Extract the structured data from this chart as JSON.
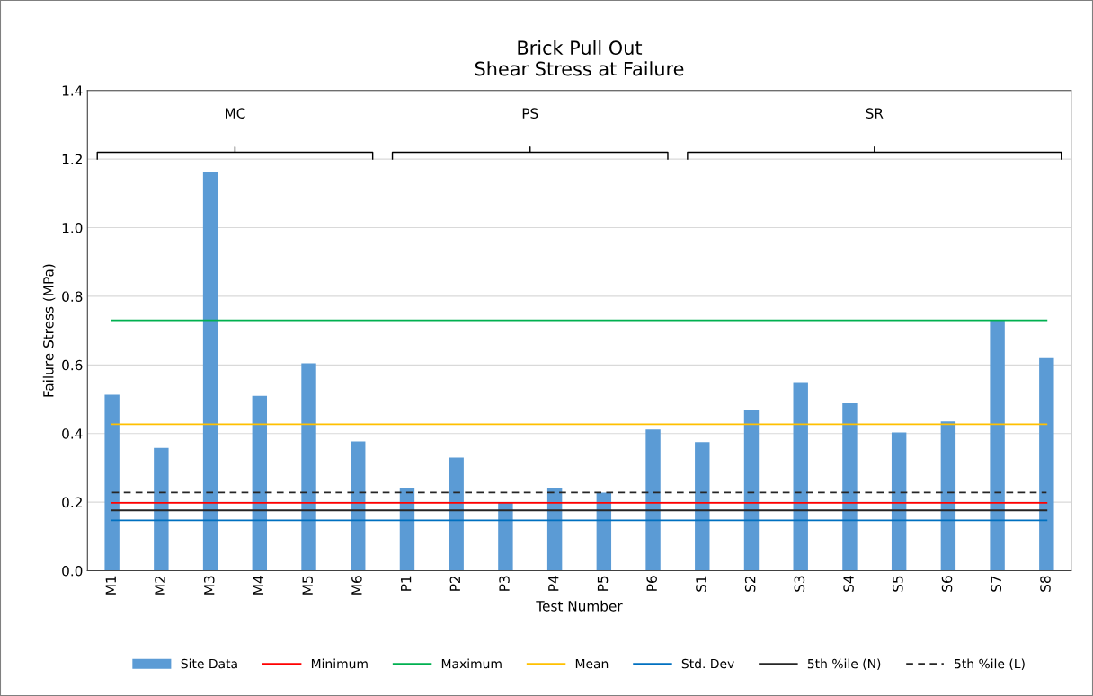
{
  "chart_data": {
    "type": "bar",
    "title": "Brick Pull Out\nShear Stress at Failure",
    "xlabel": "Test Number",
    "ylabel": "Failure Stress (MPa)",
    "categories": [
      "M1",
      "M2",
      "M3",
      "M4",
      "M5",
      "M6",
      "P1",
      "P2",
      "P3",
      "P4",
      "P5",
      "P6",
      "S1",
      "S2",
      "S3",
      "S4",
      "S5",
      "S6",
      "S7",
      "S8"
    ],
    "series": [
      {
        "name": "Site Data",
        "color": "#5b9bd5",
        "values": [
          0.513,
          0.358,
          1.162,
          0.51,
          0.605,
          0.377,
          0.242,
          0.33,
          0.198,
          0.242,
          0.228,
          0.412,
          0.375,
          0.468,
          0.55,
          0.488,
          0.403,
          0.435,
          0.73,
          0.62
        ]
      },
      {
        "name": "Minimum",
        "type": "line",
        "color": "#ff0000",
        "values": [
          0.198,
          0.198,
          0.198,
          0.198,
          0.198,
          0.198,
          0.198,
          0.198,
          0.198,
          0.198,
          0.198,
          0.198,
          0.198,
          0.198,
          0.198,
          0.198,
          0.198,
          0.198,
          0.198,
          0.198
        ]
      },
      {
        "name": "Maximum",
        "type": "line",
        "color": "#00b050",
        "values": [
          0.73,
          0.73,
          0.73,
          0.73,
          0.73,
          0.73,
          0.73,
          0.73,
          0.73,
          0.73,
          0.73,
          0.73,
          0.73,
          0.73,
          0.73,
          0.73,
          0.73,
          0.73,
          0.73,
          0.73
        ]
      },
      {
        "name": "Mean",
        "type": "line",
        "color": "#ffc000",
        "values": [
          0.427,
          0.427,
          0.427,
          0.427,
          0.427,
          0.427,
          0.427,
          0.427,
          0.427,
          0.427,
          0.427,
          0.427,
          0.427,
          0.427,
          0.427,
          0.427,
          0.427,
          0.427,
          0.427,
          0.427
        ]
      },
      {
        "name": "Std. Dev",
        "type": "line",
        "color": "#0070c0",
        "values": [
          0.147,
          0.147,
          0.147,
          0.147,
          0.147,
          0.147,
          0.147,
          0.147,
          0.147,
          0.147,
          0.147,
          0.147,
          0.147,
          0.147,
          0.147,
          0.147,
          0.147,
          0.147,
          0.147,
          0.147
        ]
      },
      {
        "name": "5th %ile (N)",
        "type": "line",
        "color": "#262626",
        "values": [
          0.176,
          0.176,
          0.176,
          0.176,
          0.176,
          0.176,
          0.176,
          0.176,
          0.176,
          0.176,
          0.176,
          0.176,
          0.176,
          0.176,
          0.176,
          0.176,
          0.176,
          0.176,
          0.176,
          0.176
        ]
      },
      {
        "name": "5th %ile (L)",
        "type": "line",
        "color": "#262626",
        "line_style": "dashed",
        "values": [
          0.228,
          0.228,
          0.228,
          0.228,
          0.228,
          0.228,
          0.228,
          0.228,
          0.228,
          0.228,
          0.228,
          0.228,
          0.228,
          0.228,
          0.228,
          0.228,
          0.228,
          0.228,
          0.228,
          0.228
        ]
      }
    ],
    "annotations": [
      "MC",
      "PS",
      "SR"
    ],
    "ylim": [
      0,
      1.4
    ],
    "yticks": [
      {
        "value": 0,
        "label": "0.0"
      },
      {
        "value": 0.2,
        "label": "0.2"
      },
      {
        "value": 0.4,
        "label": "0.4"
      },
      {
        "value": 0.6,
        "label": "0.6"
      },
      {
        "value": 0.8,
        "label": "0.8"
      },
      {
        "value": 1.0,
        "label": "1.0"
      },
      {
        "value": 1.2,
        "label": "1.2"
      },
      {
        "value": 1.4,
        "label": "1.4"
      }
    ],
    "grid": "y",
    "legend": "bottom"
  }
}
